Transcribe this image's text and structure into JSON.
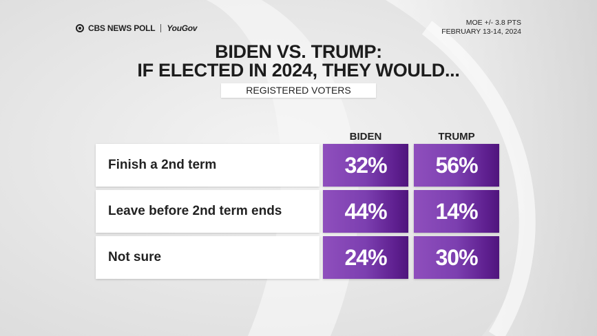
{
  "header": {
    "brand": "CBS NEWS POLL",
    "partner": "YouGov",
    "moe": "MOE +/- 3.8 PTS",
    "dates": "FEBRUARY 13-14, 2024"
  },
  "chart_data": {
    "type": "table",
    "title_line1": "BIDEN VS. TRUMP:",
    "title_line2": "IF ELECTED IN 2024, THEY WOULD...",
    "subtitle": "REGISTERED VOTERS",
    "columns": [
      "BIDEN",
      "TRUMP"
    ],
    "rows": [
      {
        "label": "Finish a 2nd term",
        "values": [
          "32%",
          "56%"
        ]
      },
      {
        "label": "Leave before 2nd term ends",
        "values": [
          "44%",
          "14%"
        ]
      },
      {
        "label": "Not sure",
        "values": [
          "24%",
          "30%"
        ]
      }
    ]
  },
  "colors": {
    "cell_purple": "#7c3fb0",
    "cell_purple_dark": "#4f157c",
    "background": "#e6e6e6"
  }
}
